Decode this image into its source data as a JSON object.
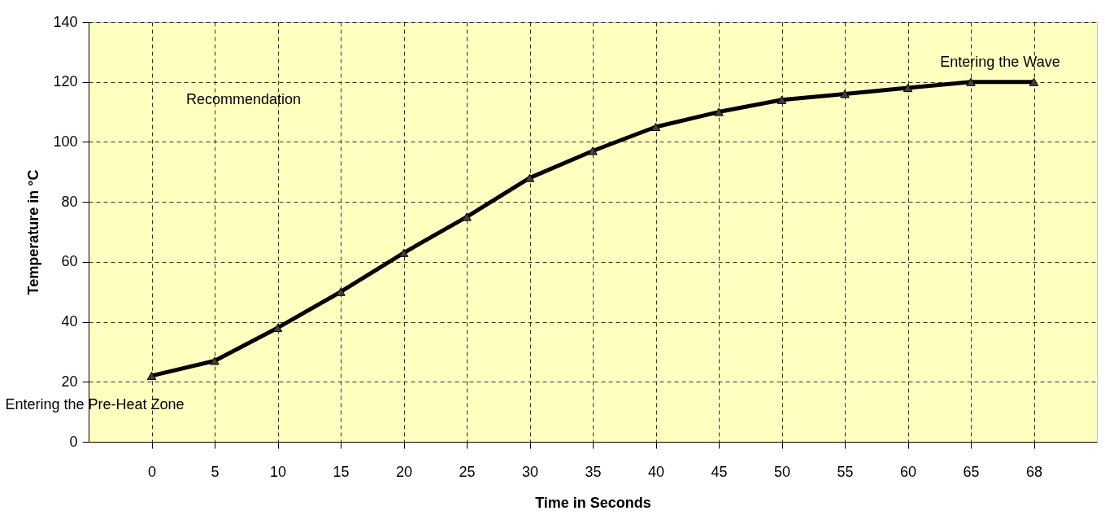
{
  "chart_data": {
    "type": "line",
    "xlabel": "Time in Seconds",
    "ylabel": "Temperature in °C",
    "categories": [
      "0",
      "5",
      "10",
      "15",
      "20",
      "25",
      "30",
      "35",
      "40",
      "45",
      "50",
      "55",
      "60",
      "65",
      "68"
    ],
    "series": [
      {
        "color": "#000000",
        "values": [
          22,
          27,
          38,
          50,
          63,
          75,
          88,
          97,
          105,
          110,
          114,
          116,
          118,
          120,
          120
        ]
      }
    ],
    "ylim": [
      0,
      140
    ],
    "yticks": [
      0,
      20,
      40,
      60,
      80,
      100,
      120,
      140
    ],
    "grid": true,
    "marker": "triangle",
    "line_style": "solid",
    "annotations": [
      "Recommendation",
      {
        "text": "Entering the Pre-Heat Zone",
        "x": "0",
        "y": 22
      },
      {
        "text": "Entering the Wave",
        "x": "65",
        "y": 120
      }
    ]
  }
}
